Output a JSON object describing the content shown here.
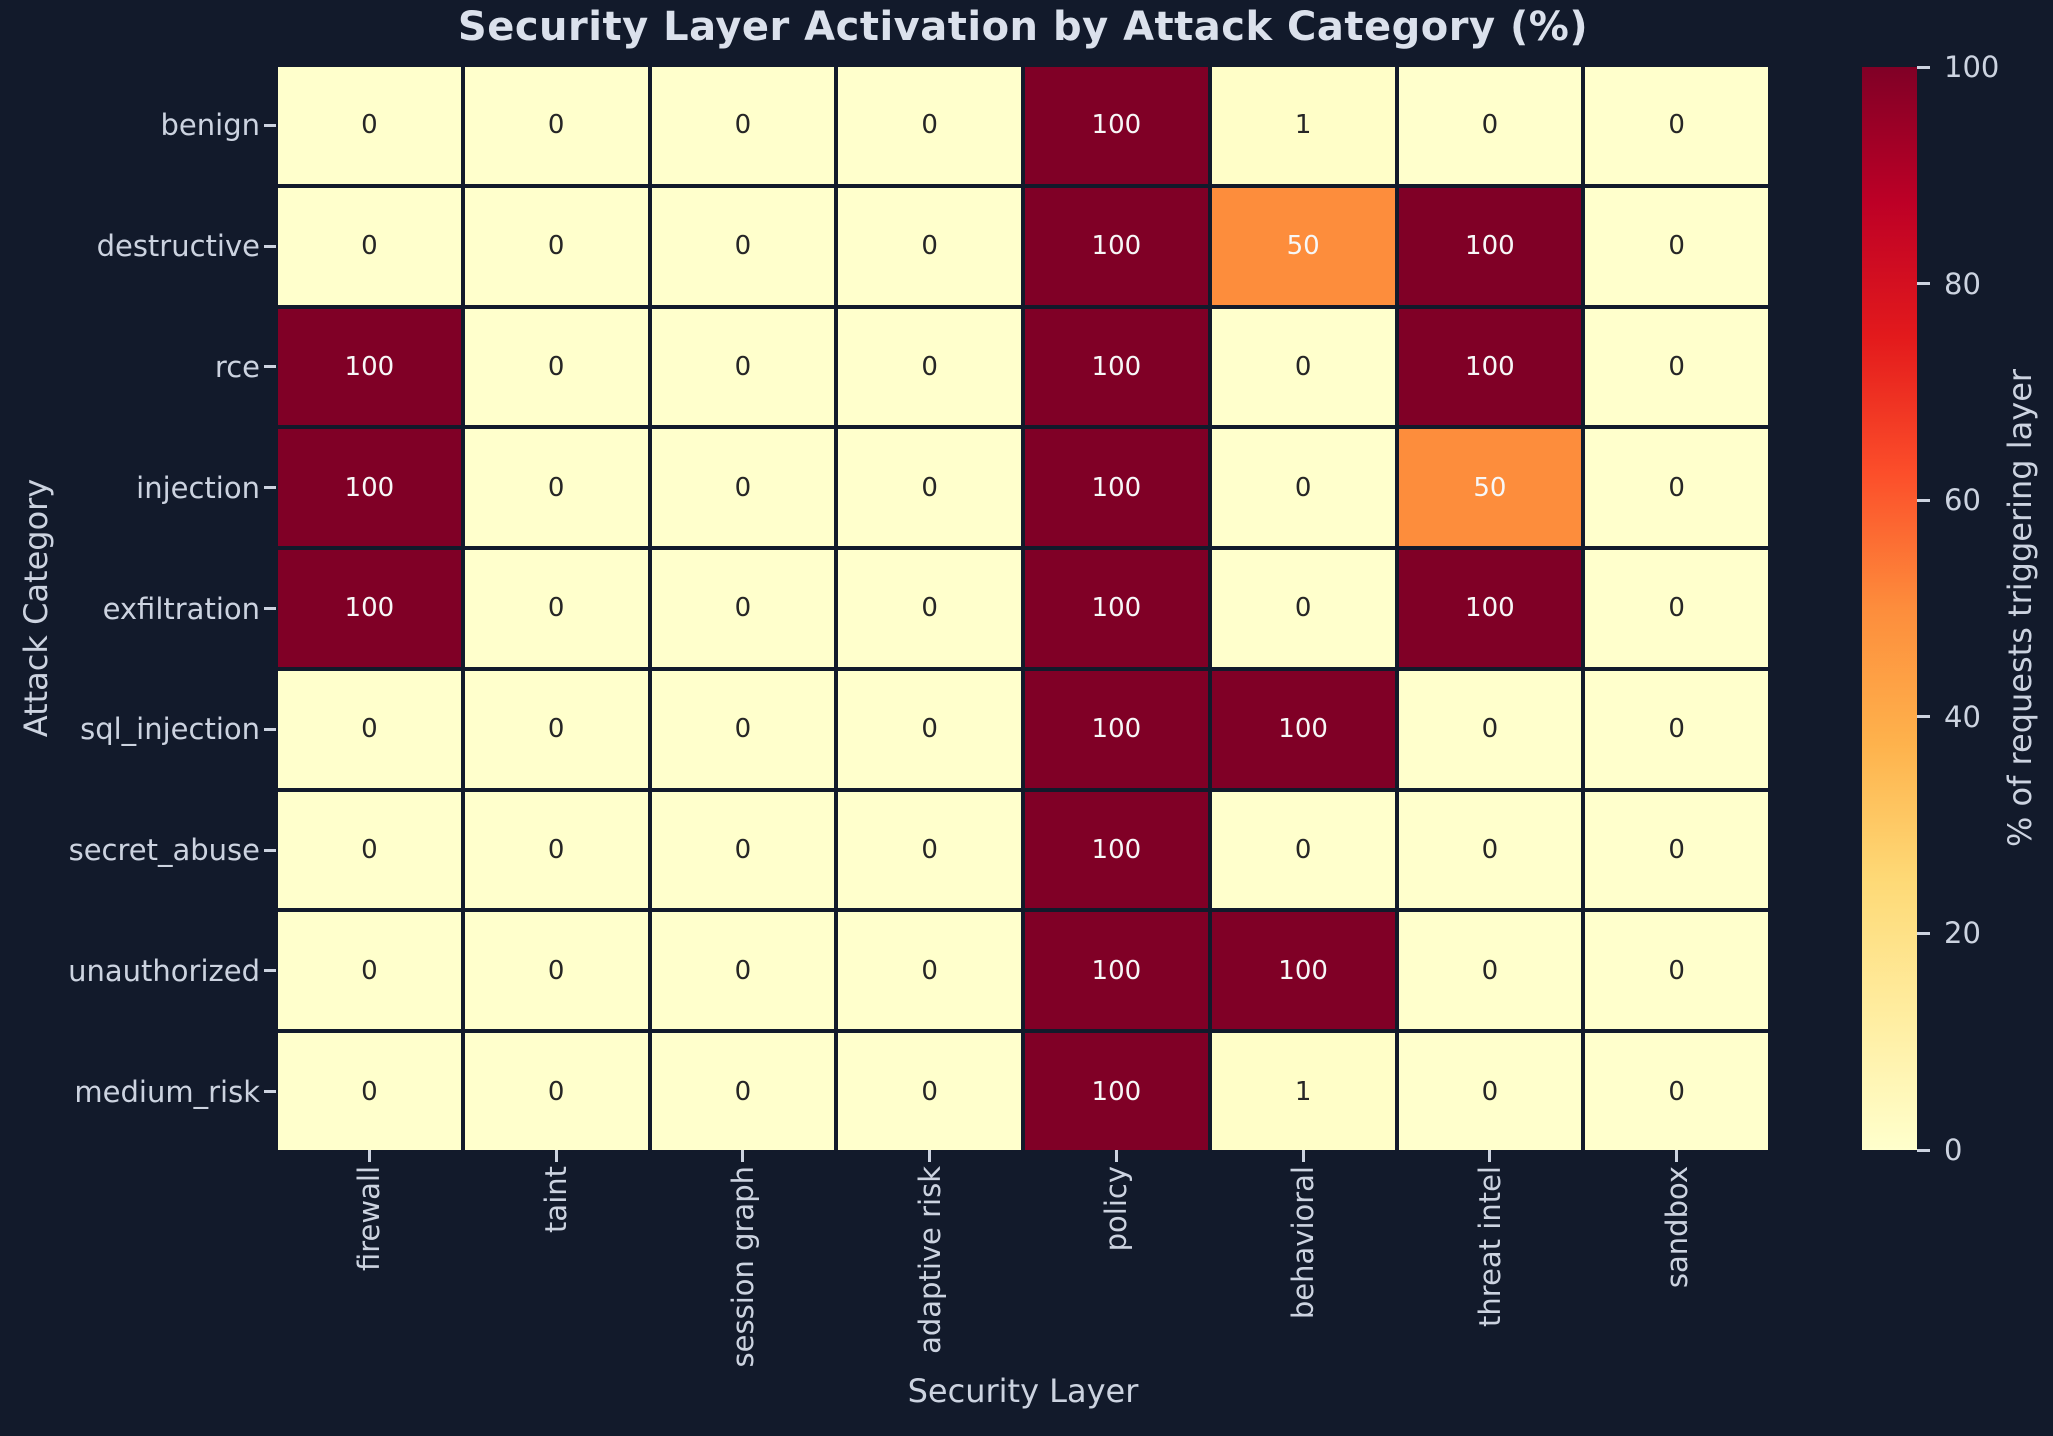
{
  "title": "Security Layer Activation by Attack Category (%)",
  "x_axis_label": "Security Layer",
  "y_axis_label": "Attack Category",
  "colorbar": {
    "label": "% of requests triggering layer",
    "ticks": [
      0,
      20,
      40,
      60,
      80,
      100
    ],
    "min": 0,
    "max": 100
  },
  "chart_data": {
    "type": "heatmap",
    "title": "Security Layer Activation by Attack Category (%)",
    "xlabel": "Security Layer",
    "ylabel": "Attack Category",
    "x_categories": [
      "firewall",
      "taint",
      "session graph",
      "adaptive risk",
      "policy",
      "behavioral",
      "threat intel",
      "sandbox"
    ],
    "y_categories": [
      "benign",
      "destructive",
      "rce",
      "injection",
      "exfiltration",
      "sql_injection",
      "secret_abuse",
      "unauthorized",
      "medium_risk"
    ],
    "values": [
      [
        0,
        0,
        0,
        0,
        100,
        1,
        0,
        0
      ],
      [
        0,
        0,
        0,
        0,
        100,
        50,
        100,
        0
      ],
      [
        100,
        0,
        0,
        0,
        100,
        0,
        100,
        0
      ],
      [
        100,
        0,
        0,
        0,
        100,
        0,
        50,
        0
      ],
      [
        100,
        0,
        0,
        0,
        100,
        0,
        100,
        0
      ],
      [
        0,
        0,
        0,
        0,
        100,
        100,
        0,
        0
      ],
      [
        0,
        0,
        0,
        0,
        100,
        0,
        0,
        0
      ],
      [
        0,
        0,
        0,
        0,
        100,
        100,
        0,
        0
      ],
      [
        0,
        0,
        0,
        0,
        100,
        1,
        0,
        0
      ]
    ],
    "value_range": [
      0,
      100
    ],
    "colormap": "YlOrRd",
    "annotated": true,
    "grid": false,
    "legend_position": "right-colorbar"
  },
  "colors": {
    "background": "#121a2b",
    "title_text": "#dbe1ec",
    "axis_text": "#ccd3e0",
    "cell_text_dark": "#262626",
    "cell_text_light": "#f7f7f7",
    "colormap_stops": [
      "#ffffcc",
      "#ffeda0",
      "#fed976",
      "#feb24c",
      "#fd8d3c",
      "#fc4e2a",
      "#e31a1c",
      "#bd0026",
      "#800026"
    ]
  }
}
